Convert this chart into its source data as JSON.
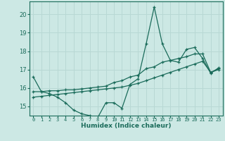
{
  "xlabel": "Humidex (Indice chaleur)",
  "background_color": "#cce8e4",
  "grid_color": "#b8d8d4",
  "line_color": "#1a6b5a",
  "xlim": [
    -0.5,
    23.5
  ],
  "ylim": [
    14.5,
    20.7
  ],
  "yticks": [
    15,
    16,
    17,
    18,
    19,
    20
  ],
  "xticks": [
    0,
    1,
    2,
    3,
    4,
    5,
    6,
    7,
    8,
    9,
    10,
    11,
    12,
    13,
    14,
    15,
    16,
    17,
    18,
    19,
    20,
    21,
    22,
    23
  ],
  "xtick_labels": [
    "0",
    "1",
    "2",
    "3",
    "4",
    "5",
    "6",
    "7",
    "8",
    "9",
    "10",
    "11",
    "12",
    "13",
    "14",
    "15",
    "16",
    "17",
    "18",
    "19",
    "20",
    "21",
    "22",
    "23"
  ],
  "line1_x": [
    0,
    1,
    2,
    3,
    4,
    5,
    6,
    7,
    8,
    9,
    10,
    11,
    12,
    13,
    14,
    15,
    16,
    17,
    18,
    19,
    20,
    21,
    22,
    23
  ],
  "line1_y": [
    16.6,
    15.8,
    15.7,
    15.5,
    15.2,
    14.8,
    14.6,
    14.5,
    14.4,
    15.2,
    15.2,
    14.9,
    16.2,
    16.5,
    18.4,
    20.4,
    18.4,
    17.5,
    17.4,
    18.1,
    18.2,
    17.6,
    16.8,
    17.1
  ],
  "line2_x": [
    0,
    1,
    2,
    3,
    4,
    5,
    6,
    7,
    8,
    9,
    10,
    11,
    12,
    13,
    14,
    15,
    16,
    17,
    18,
    19,
    20,
    21,
    22,
    23
  ],
  "line2_y": [
    15.8,
    15.8,
    15.85,
    15.85,
    15.9,
    15.9,
    15.95,
    16.0,
    16.05,
    16.1,
    16.3,
    16.4,
    16.6,
    16.7,
    17.05,
    17.15,
    17.4,
    17.5,
    17.6,
    17.7,
    17.85,
    17.85,
    16.85,
    17.05
  ],
  "line3_x": [
    0,
    1,
    2,
    3,
    4,
    5,
    6,
    7,
    8,
    9,
    10,
    11,
    12,
    13,
    14,
    15,
    16,
    17,
    18,
    19,
    20,
    21,
    22,
    23
  ],
  "line3_y": [
    15.5,
    15.55,
    15.6,
    15.65,
    15.7,
    15.75,
    15.8,
    15.85,
    15.9,
    15.95,
    16.0,
    16.05,
    16.15,
    16.25,
    16.4,
    16.55,
    16.7,
    16.85,
    17.0,
    17.15,
    17.3,
    17.45,
    16.85,
    17.0
  ]
}
